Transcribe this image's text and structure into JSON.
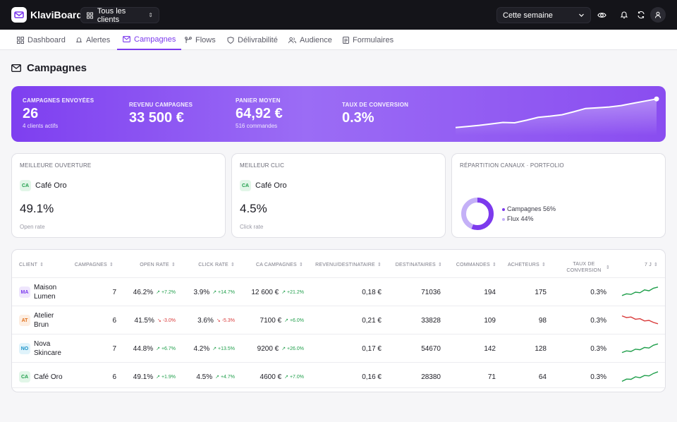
{
  "app": {
    "name": "KlaviBoard"
  },
  "topbar": {
    "client_selector": "Tous les clients",
    "period_selector": "Cette semaine"
  },
  "nav": {
    "items": [
      {
        "label": "Dashboard"
      },
      {
        "label": "Alertes"
      },
      {
        "label": "Campagnes"
      },
      {
        "label": "Flows"
      },
      {
        "label": "Délivrabilité"
      },
      {
        "label": "Audience"
      },
      {
        "label": "Formulaires"
      }
    ],
    "active": "Campagnes"
  },
  "page": {
    "title": "Campagnes"
  },
  "hero": {
    "kpis": [
      {
        "label": "CAMPAGNES ENVOYÉES",
        "value": "26",
        "sub": "4 clients actifs"
      },
      {
        "label": "REVENU CAMPAGNES",
        "value": "33 500 €",
        "sub": ""
      },
      {
        "label": "PANIER MOYEN",
        "value": "64,92 €",
        "sub": "516 commandes"
      },
      {
        "label": "TAUX DE CONVERSION",
        "value": "0.3%",
        "sub": ""
      }
    ],
    "trend": [
      0.12,
      0.15,
      0.18,
      0.22,
      0.26,
      0.25,
      0.32,
      0.4,
      0.43,
      0.47,
      0.55,
      0.64,
      0.66,
      0.68,
      0.72,
      0.78,
      0.84,
      0.9
    ]
  },
  "cards": {
    "best_open": {
      "label": "MEILLEURE OUVERTURE",
      "client_badge": "CA",
      "client": "Café Oro",
      "value": "49.1%",
      "caption": "Open rate"
    },
    "best_click": {
      "label": "MEILLEUR CLIC",
      "client_badge": "CA",
      "client": "Café Oro",
      "value": "4.5%",
      "caption": "Click rate"
    },
    "channels": {
      "label": "RÉPARTITION CANAUX · PORTFOLIO",
      "slices": [
        {
          "name": "Campagnes",
          "pct": 56,
          "legend": "Campagnes 56%",
          "color": "#7c3aed"
        },
        {
          "name": "Flux",
          "pct": 44,
          "legend": "Flux 44%",
          "color": "#c4b0f7"
        }
      ]
    }
  },
  "table": {
    "headers": [
      "CLIENT",
      "CAMPAGNES",
      "OPEN RATE",
      "CLICK RATE",
      "CA CAMPAGNES",
      "REVENU/DESTINATAIRE",
      "DESTINATAIRES",
      "COMMANDES",
      "ACHETEURS",
      "TAUX DE CONVERSION",
      "7 J"
    ],
    "rows": [
      {
        "badge": "MA",
        "badge_bg": "#efe6fd",
        "badge_fg": "#7c3aed",
        "client": "Maison Lumen",
        "campaigns": "7",
        "open": "46.2%",
        "open_delta": "+7.2%",
        "open_dir": "up",
        "click": "3.9%",
        "click_delta": "+14.7%",
        "click_dir": "up",
        "ca": "12 600 €",
        "ca_delta": "+21.2%",
        "ca_dir": "up",
        "rpr": "0,18 €",
        "recipients": "71036",
        "orders": "194",
        "buyers": "175",
        "conv": "0.3%",
        "trend": [
          0.2,
          0.35,
          0.3,
          0.5,
          0.45,
          0.7,
          0.62,
          0.85,
          0.95
        ],
        "trend_dir": "up"
      },
      {
        "badge": "AT",
        "badge_bg": "#fdeee2",
        "badge_fg": "#e0701a",
        "client": "Atelier Brun",
        "campaigns": "6",
        "open": "41.5%",
        "open_delta": "-3.0%",
        "open_dir": "down",
        "click": "3.6%",
        "click_delta": "-5.3%",
        "click_dir": "down",
        "ca": "7100 €",
        "ca_delta": "+6.0%",
        "ca_dir": "up",
        "rpr": "0,21 €",
        "recipients": "33828",
        "orders": "109",
        "buyers": "98",
        "conv": "0.3%",
        "trend": [
          0.9,
          0.75,
          0.8,
          0.6,
          0.65,
          0.45,
          0.5,
          0.32,
          0.2
        ],
        "trend_dir": "down"
      },
      {
        "badge": "NO",
        "badge_bg": "#e0f3fb",
        "badge_fg": "#1a93c9",
        "client": "Nova Skincare",
        "campaigns": "7",
        "open": "44.8%",
        "open_delta": "+6.7%",
        "open_dir": "up",
        "click": "4.2%",
        "click_delta": "+13.5%",
        "click_dir": "up",
        "ca": "9200 €",
        "ca_delta": "+26.0%",
        "ca_dir": "up",
        "rpr": "0,17 €",
        "recipients": "54670",
        "orders": "142",
        "buyers": "128",
        "conv": "0.3%",
        "trend": [
          0.15,
          0.3,
          0.25,
          0.45,
          0.4,
          0.6,
          0.55,
          0.8,
          0.92
        ],
        "trend_dir": "up"
      },
      {
        "badge": "CA",
        "badge_bg": "#e2f6e8",
        "badge_fg": "#1e9e4a",
        "client": "Café Oro",
        "campaigns": "6",
        "open": "49.1%",
        "open_delta": "+1.9%",
        "open_dir": "up",
        "click": "4.5%",
        "click_delta": "+4.7%",
        "click_dir": "up",
        "ca": "4600 €",
        "ca_delta": "+7.0%",
        "ca_dir": "up",
        "rpr": "0,16 €",
        "recipients": "28380",
        "orders": "71",
        "buyers": "64",
        "conv": "0.3%",
        "trend": [
          0.1,
          0.3,
          0.28,
          0.5,
          0.42,
          0.62,
          0.58,
          0.8,
          0.95
        ],
        "trend_dir": "up"
      }
    ]
  }
}
